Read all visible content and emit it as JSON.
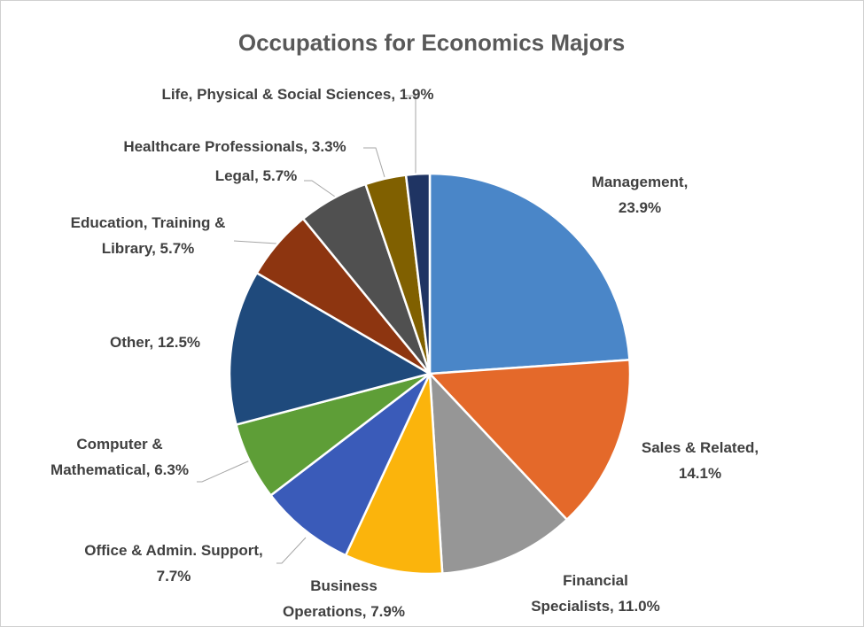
{
  "chart_data": {
    "type": "pie",
    "title": "Occupations for Economics Majors",
    "values": [
      23.9,
      14.1,
      11.0,
      7.9,
      7.7,
      6.3,
      12.5,
      5.7,
      5.7,
      3.3,
      1.9
    ],
    "value_labels": [
      "Management,\n23.9%",
      "Sales & Related,\n14.1%",
      "Financial\nSpecialists, 11.0%",
      "Business\nOperations, 7.9%",
      "Office & Admin. Support,\n7.7%",
      "Computer &\nMathematical, 6.3%",
      "Other, 12.5%",
      "Education, Training &\nLibrary, 5.7%",
      "Legal, 5.7%",
      "Healthcare Professionals, 3.3%",
      "Life, Physical & Social Sciences, 1.9%"
    ],
    "colors": [
      "#4a86c8",
      "#e4692a",
      "#969696",
      "#fbb40c",
      "#3a5bb9",
      "#5e9e37",
      "#1f4a7c",
      "#8d3510",
      "#505050",
      "#806000",
      "#1f3463"
    ]
  }
}
